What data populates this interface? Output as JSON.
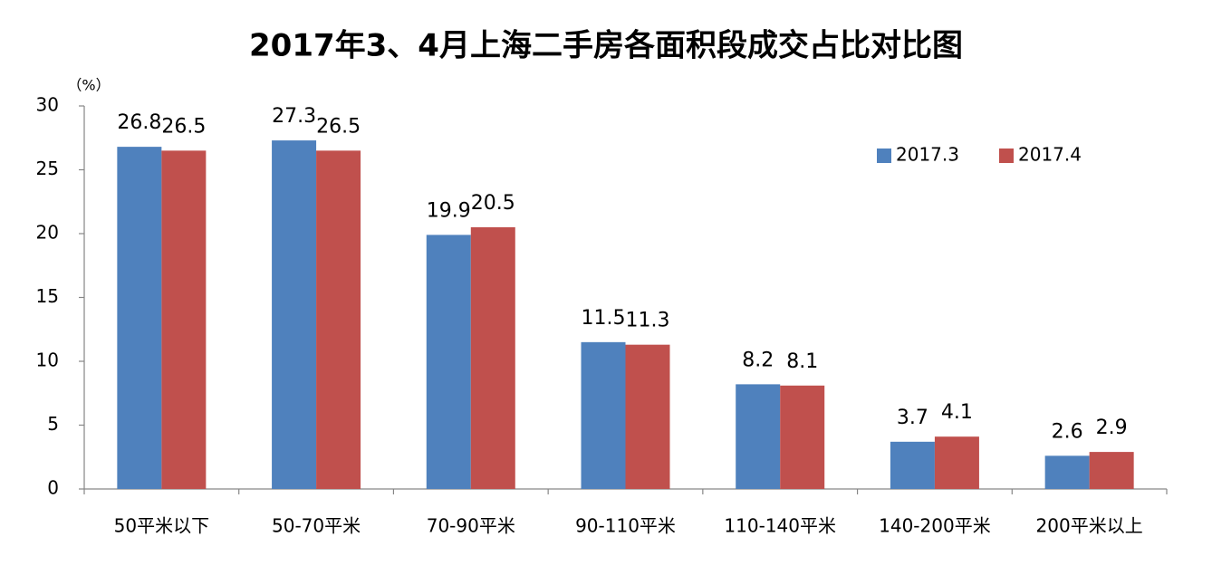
{
  "chart_data": {
    "type": "bar",
    "title": "2017年3、4月上海二手房各面积段成交占比对比图",
    "y_label": "（%）",
    "categories": [
      "50平米以下",
      "50-70平米",
      "70-90平米",
      "90-110平米",
      "110-140平米",
      "140-200平米",
      "200平米以上"
    ],
    "series": [
      {
        "name": "2017.3",
        "color": "#4f81bd",
        "values": [
          26.8,
          27.3,
          19.9,
          11.5,
          8.2,
          3.7,
          2.6
        ]
      },
      {
        "name": "2017.4",
        "color": "#c0504d",
        "values": [
          26.5,
          26.5,
          20.5,
          11.3,
          8.1,
          4.1,
          2.9
        ]
      }
    ],
    "ylim": [
      0,
      30
    ],
    "yticks": [
      0,
      5,
      10,
      15,
      20,
      25,
      30
    ],
    "grid": false,
    "legend": "top-right"
  }
}
